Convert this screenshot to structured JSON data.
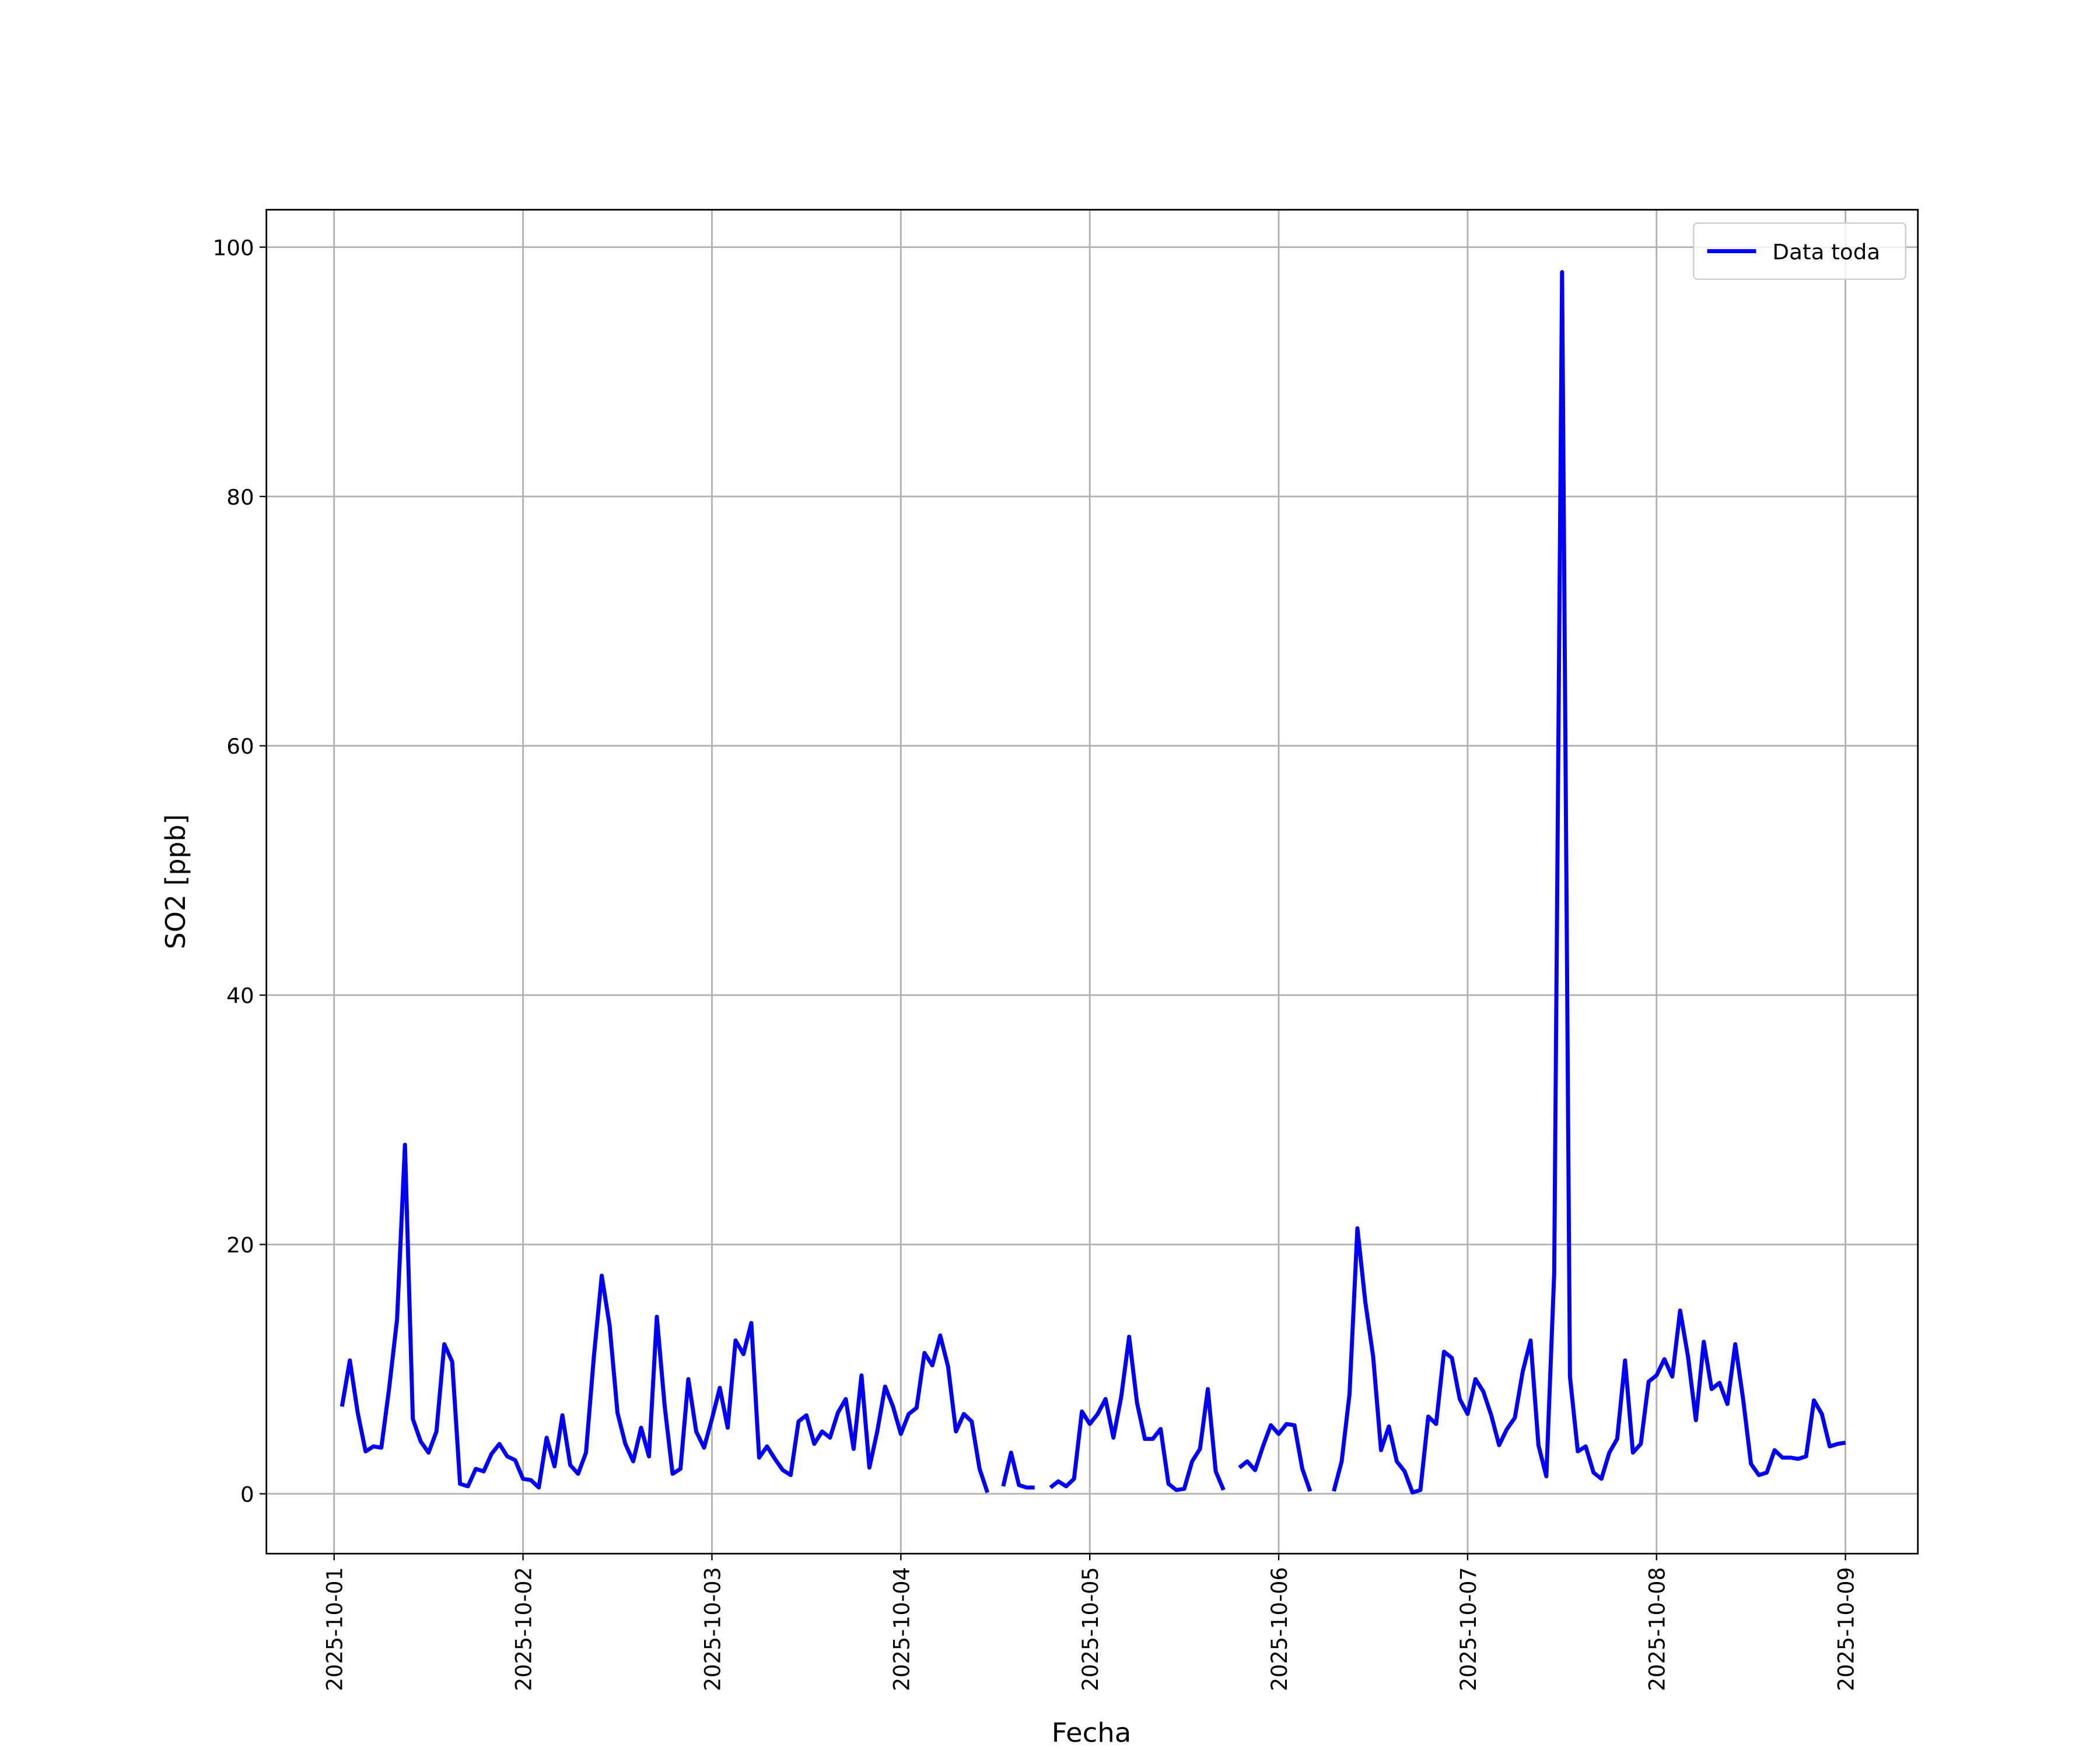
{
  "chart_data": {
    "type": "line",
    "x_label": "Fecha",
    "y_label": "SO2 [ppb]",
    "xlim": [
      -8.6,
      201.2
    ],
    "ylim": [
      -4.8,
      103
    ],
    "xticks": [
      {
        "value": 0,
        "label": "2025-10-01"
      },
      {
        "value": 24,
        "label": "2025-10-02"
      },
      {
        "value": 48,
        "label": "2025-10-03"
      },
      {
        "value": 72,
        "label": "2025-10-04"
      },
      {
        "value": 96,
        "label": "2025-10-05"
      },
      {
        "value": 120,
        "label": "2025-10-06"
      },
      {
        "value": 144,
        "label": "2025-10-07"
      },
      {
        "value": 168,
        "label": "2025-10-08"
      },
      {
        "value": 192,
        "label": "2025-10-09"
      }
    ],
    "yticks": [
      0,
      20,
      40,
      60,
      80,
      100
    ],
    "grid": true,
    "legend": "upper right",
    "x": [
      1,
      2,
      3,
      4,
      5,
      6,
      7,
      8,
      9,
      10,
      11,
      12,
      13,
      14,
      15,
      16,
      17,
      18,
      19,
      20,
      21,
      22,
      23,
      24,
      25,
      26,
      27,
      28,
      29,
      30,
      31,
      32,
      33,
      34,
      35,
      36,
      37,
      38,
      39,
      40,
      41,
      42,
      43,
      44,
      45,
      46,
      47,
      48,
      49,
      50,
      51,
      52,
      53,
      54,
      55,
      56,
      57,
      58,
      59,
      60,
      61,
      62,
      63,
      64,
      65,
      66,
      67,
      68,
      69,
      70,
      71,
      72,
      73,
      74,
      75,
      76,
      77,
      78,
      79,
      80,
      81,
      82,
      83,
      84,
      85,
      86,
      87,
      88,
      89,
      90,
      91,
      92,
      93,
      94,
      95,
      96,
      97,
      98,
      99,
      100,
      101,
      102,
      103,
      104,
      105,
      106,
      107,
      108,
      109,
      110,
      111,
      112,
      113,
      114,
      115,
      116,
      117,
      118,
      119,
      120,
      121,
      122,
      123,
      124,
      125,
      126,
      127,
      128,
      129,
      130,
      131,
      132,
      133,
      134,
      135,
      136,
      137,
      138,
      139,
      140,
      141,
      142,
      143,
      144,
      145,
      146,
      147,
      148,
      149,
      150,
      151,
      152,
      153,
      154,
      155,
      156,
      157,
      158,
      159,
      160,
      161,
      162,
      163,
      164,
      165,
      166,
      167,
      168,
      169,
      170,
      171,
      172,
      173,
      174,
      175,
      176,
      177,
      178,
      179,
      180,
      181,
      182,
      183,
      184,
      185,
      186,
      187,
      188,
      189,
      190,
      191,
      192
    ],
    "series": [
      {
        "name": "Data toda",
        "color": "#0000ff",
        "values": [
          7,
          10.7,
          6.5,
          3.4,
          3.8,
          3.7,
          8.5,
          14,
          28,
          6,
          4.2,
          3.3,
          5,
          12,
          10.6,
          0.8,
          0.6,
          2,
          1.8,
          3.2,
          4,
          3,
          2.7,
          1.2,
          1.1,
          0.5,
          4.5,
          2.2,
          6.3,
          2.3,
          1.6,
          3.3,
          11,
          17.5,
          13.5,
          6.5,
          4,
          2.6,
          5.3,
          3,
          14.2,
          7,
          1.6,
          2,
          9.2,
          5,
          3.7,
          6,
          8.5,
          5.3,
          12.3,
          11.2,
          13.7,
          2.9,
          3.8,
          2.8,
          1.9,
          1.5,
          5.8,
          6.3,
          4,
          5,
          4.5,
          6.5,
          7.6,
          3.6,
          9.5,
          2.1,
          5,
          8.6,
          7,
          4.8,
          6.4,
          6.9,
          11.3,
          10.3,
          12.7,
          10.2,
          5,
          6.4,
          5.8,
          2,
          0.1,
          null,
          0.6,
          3.3,
          0.7,
          0.5,
          0.5,
          null,
          0.5,
          1,
          0.6,
          1.2,
          6.6,
          5.6,
          6.4,
          7.6,
          4.5,
          7.8,
          12.6,
          7.3,
          4.4,
          4.4,
          5.2,
          0.8,
          0.3,
          0.4,
          2.6,
          3.6,
          8.4,
          1.8,
          0.3,
          null,
          2.1,
          2.6,
          1.9,
          3.8,
          5.5,
          4.8,
          5.6,
          5.5,
          2,
          0.2,
          null,
          null,
          0.2,
          2.6,
          8,
          21.3,
          15.4,
          11,
          3.5,
          5.4,
          2.6,
          1.8,
          0.1,
          0.3,
          6.2,
          5.6,
          11.4,
          10.9,
          7.6,
          6.4,
          9.2,
          8.2,
          6.3,
          3.9,
          5.2,
          6.1,
          9.8,
          12.3,
          3.9,
          1.4,
          17.7,
          98,
          9.4,
          3.4,
          3.8,
          1.7,
          1.2,
          3.3,
          4.4,
          10.7,
          3.3,
          4,
          9,
          9.5,
          10.8,
          9.4,
          14.7,
          11,
          5.9,
          12.2,
          8.4,
          8.9,
          7.2,
          12,
          7.6,
          2.4,
          1.5,
          1.7,
          3.5,
          2.9,
          2.9,
          2.8,
          3,
          7.5,
          6.4,
          3.8,
          4,
          4.1
        ]
      }
    ]
  }
}
